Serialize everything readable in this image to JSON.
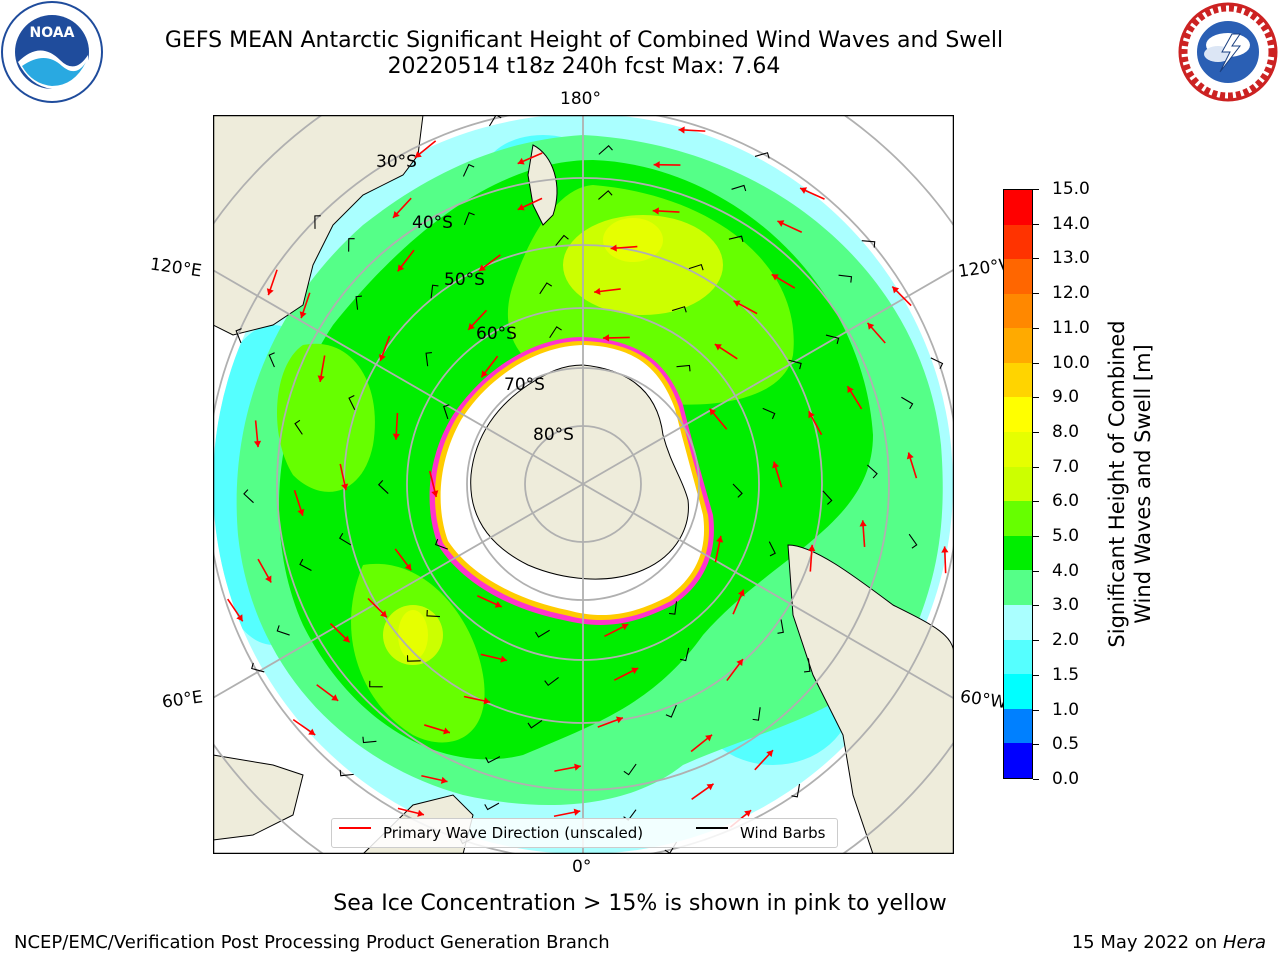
{
  "header": {
    "title_line1": "GEFS MEAN Antarctic Significant Height of Combined Wind Waves and Swell",
    "title_line2": "20220514 t18z 240h fcst   Max: 7.64"
  },
  "logos": {
    "left": "noaa-logo",
    "left_text": "NOAA",
    "right": "nws-logo"
  },
  "map": {
    "projection": "south-polar-stereographic",
    "longitude_labels": {
      "top": "180°",
      "bottom": "0°",
      "upper_left": "120°E",
      "upper_right": "120°W",
      "lower_left": "60°E",
      "lower_right": "60°W"
    },
    "latitude_labels": [
      "30°S",
      "40°S",
      "50°S",
      "60°S",
      "70°S",
      "80°S"
    ],
    "land_color": "#eeecdb",
    "ice_colors": [
      "#ff33cc",
      "#ffcc00"
    ]
  },
  "colorbar": {
    "title_line1": "Significant Height of Combined",
    "title_line2": "Wind Waves and Swell [m]",
    "ticks": [
      "15.0",
      "14.0",
      "13.0",
      "12.0",
      "11.0",
      "10.0",
      "9.0",
      "8.0",
      "7.0",
      "6.0",
      "5.0",
      "4.0",
      "3.0",
      "2.0",
      "1.5",
      "1.0",
      "0.5",
      "0.0"
    ],
    "colors_top_to_bottom": [
      "#ff0000",
      "#ff3300",
      "#ff6600",
      "#ff8800",
      "#ffaa00",
      "#ffd400",
      "#ffff00",
      "#e6ff00",
      "#ccff00",
      "#66ff00",
      "#00ee00",
      "#55ff88",
      "#aaffff",
      "#55ffff",
      "#00ffff",
      "#0080ff",
      "#0000ff"
    ]
  },
  "legend": {
    "primary_wave": "Primary Wave Direction (unscaled)",
    "wind_barbs": "Wind Barbs",
    "primary_wave_color": "#ff0000",
    "wind_barbs_color": "#000000"
  },
  "subnote": "Sea Ice Concentration > 15% is shown in pink to yellow",
  "footer": {
    "left": "NCEP/EMC/Verification Post Processing Product Generation Branch",
    "right_prefix": "15 May 2022 on ",
    "right_host": "Hera"
  }
}
